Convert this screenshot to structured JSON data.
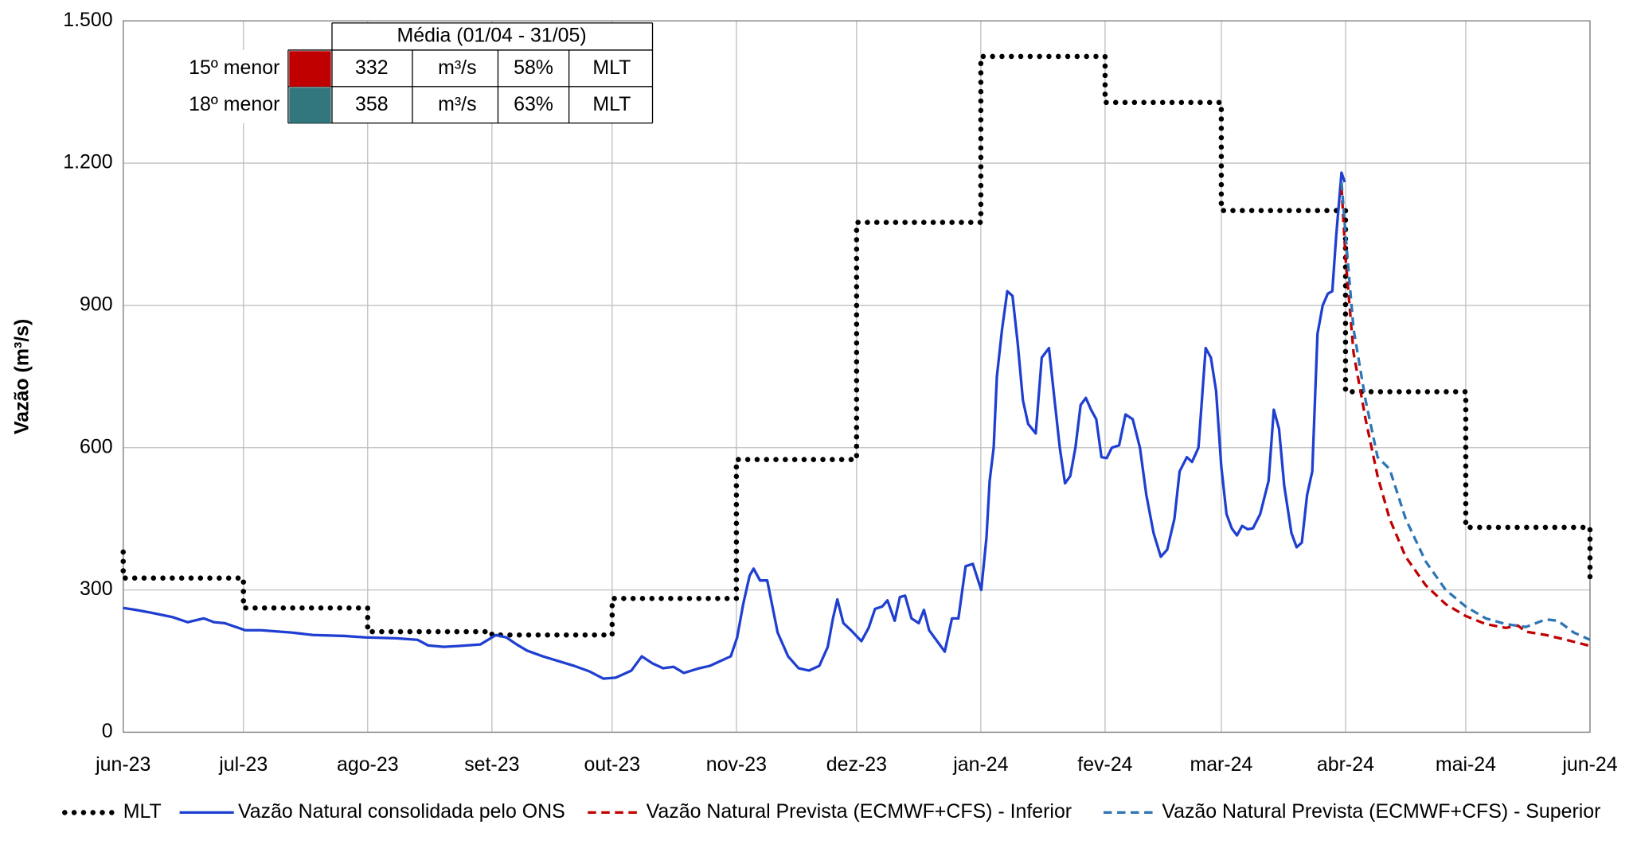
{
  "chart_data": {
    "type": "line",
    "y_label": "Vazão (m³/s)",
    "xlim": [
      0,
      366
    ],
    "xticks": [
      {
        "value": 0,
        "label": "jun-23"
      },
      {
        "value": 30,
        "label": "jul-23"
      },
      {
        "value": 61,
        "label": "ago-23"
      },
      {
        "value": 92,
        "label": "set-23"
      },
      {
        "value": 122,
        "label": "out-23"
      },
      {
        "value": 153,
        "label": "nov-23"
      },
      {
        "value": 183,
        "label": "dez-23"
      },
      {
        "value": 214,
        "label": "jan-24"
      },
      {
        "value": 245,
        "label": "fev-24"
      },
      {
        "value": 274,
        "label": "mar-24"
      },
      {
        "value": 305,
        "label": "abr-24"
      },
      {
        "value": 335,
        "label": "mai-24"
      },
      {
        "value": 366,
        "label": "jun-24"
      }
    ],
    "ylim": [
      0,
      1500
    ],
    "yticks": [
      0,
      300,
      600,
      900,
      {
        "value": 1200,
        "label": "1.200"
      },
      {
        "value": 1500,
        "label": "1.500"
      }
    ],
    "grid": true,
    "legend": "bottom",
    "series": [
      {
        "name": "MLT",
        "color": "#000000",
        "style": "dotted",
        "x": [
          0,
          0,
          30,
          30,
          61,
          61,
          92,
          92,
          122,
          122,
          153,
          153,
          183,
          183,
          214,
          214,
          245,
          245,
          274,
          274,
          305,
          305,
          335,
          335,
          366,
          366
        ],
        "values": [
          380,
          325,
          325,
          262,
          262,
          212,
          212,
          205,
          205,
          282,
          282,
          575,
          575,
          1075,
          1075,
          1425,
          1425,
          1328,
          1328,
          1100,
          1100,
          718,
          718,
          432,
          432,
          325
        ]
      },
      {
        "name": "Vazão Natural consolidada pelo ONS",
        "color": "#1f3fd0",
        "style": "solid",
        "x": [
          0,
          3.1,
          7.0,
          12.2,
          16.1,
          20.1,
          22.7,
          25.3,
          30.5,
          34.4,
          42.2,
          47.4,
          55.2,
          60.4,
          68.2,
          73.4,
          76.1,
          80.0,
          83.9,
          89.1,
          93.0,
          95.6,
          98.2,
          100.8,
          104.7,
          108.6,
          112.5,
          116.4,
          119.8,
          122.9,
          126.8,
          129.4,
          132.1,
          134.7,
          137.3,
          139.9,
          143.8,
          146.4,
          149.0,
          151.6,
          153.2,
          154.7,
          156.3,
          157.3,
          158.9,
          160.7,
          163.3,
          165.9,
          168.5,
          171.1,
          173.7,
          175.8,
          177.1,
          178.2,
          179.7,
          181.6,
          184.2,
          186.0,
          187.6,
          189.4,
          190.7,
          192.5,
          193.8,
          195.1,
          196.7,
          198.5,
          199.8,
          201.1,
          202.4,
          205.0,
          206.8,
          208.4,
          210.2,
          212.0,
          214.1,
          215.4,
          216.2,
          217.2,
          218.0,
          219.3,
          220.6,
          221.9,
          223.2,
          224.5,
          225.8,
          227.7,
          229.2,
          231.0,
          232.4,
          233.7,
          235.0,
          236.3,
          237.6,
          238.9,
          240.2,
          241.5,
          242.8,
          244.1,
          245.4,
          246.7,
          248.5,
          250.1,
          251.9,
          253.7,
          255.3,
          257.1,
          258.9,
          260.5,
          262.3,
          263.6,
          265.4,
          266.7,
          268.3,
          270.1,
          271.4,
          272.7,
          274.0,
          275.3,
          276.6,
          277.9,
          279.2,
          280.6,
          281.9,
          283.7,
          285.8,
          287.1,
          288.4,
          289.7,
          291.5,
          292.8,
          294.1,
          295.4,
          296.7,
          298.0,
          299.3,
          300.6,
          301.7,
          302.7,
          304.0,
          304.8
        ],
        "values": [
          262,
          258,
          252,
          243,
          232,
          240,
          232,
          230,
          215,
          215,
          210,
          205,
          203,
          200,
          198,
          195,
          183,
          180,
          182,
          185,
          205,
          200,
          185,
          172,
          160,
          150,
          140,
          128,
          113,
          115,
          130,
          160,
          145,
          135,
          138,
          125,
          135,
          140,
          150,
          160,
          200,
          270,
          330,
          345,
          320,
          320,
          210,
          160,
          135,
          130,
          140,
          180,
          240,
          280,
          230,
          215,
          192,
          220,
          260,
          265,
          278,
          235,
          285,
          288,
          240,
          230,
          258,
          215,
          200,
          170,
          240,
          240,
          350,
          355,
          300,
          410,
          530,
          600,
          750,
          850,
          930,
          920,
          820,
          700,
          650,
          630,
          790,
          810,
          700,
          600,
          525,
          540,
          600,
          690,
          705,
          680,
          660,
          580,
          578,
          600,
          605,
          670,
          660,
          600,
          500,
          420,
          370,
          385,
          450,
          550,
          580,
          570,
          600,
          810,
          790,
          720,
          560,
          460,
          430,
          415,
          435,
          428,
          430,
          460,
          530,
          680,
          640,
          520,
          420,
          390,
          400,
          500,
          550,
          840,
          900,
          925,
          930,
          1050,
          1180,
          1160
        ]
      },
      {
        "name": "Vazão Natural Prevista (ECMWF+CFS) - Inferior",
        "color": "#c00000",
        "style": "dashed",
        "x": [
          304,
          305,
          307,
          310,
          313,
          316,
          320,
          325,
          330,
          335,
          340,
          345,
          348,
          350,
          355,
          360,
          366
        ],
        "values": [
          1150,
          1000,
          800,
          660,
          540,
          450,
          370,
          310,
          270,
          245,
          228,
          220,
          225,
          212,
          205,
          195,
          182
        ]
      },
      {
        "name": "Vazão Natural Prevista (ECMWF+CFS) - Superior",
        "color": "#2e75b6",
        "style": "dashed",
        "x": [
          304,
          305,
          307,
          310,
          313,
          316,
          320,
          325,
          330,
          335,
          340,
          345,
          350,
          355,
          358,
          362,
          366
        ],
        "values": [
          1160,
          1050,
          850,
          700,
          580,
          555,
          450,
          360,
          300,
          265,
          240,
          228,
          222,
          238,
          235,
          210,
          195
        ]
      }
    ],
    "table": {
      "header": "Média (01/04 - 31/05)",
      "rows": [
        {
          "label": "15º menor",
          "color": "#c00000",
          "value": "332",
          "unit": "m³/s",
          "percent": "58%",
          "ref": "MLT"
        },
        {
          "label": "18º menor",
          "color": "#31777d",
          "value": "358",
          "unit": "m³/s",
          "percent": "63%",
          "ref": "MLT"
        }
      ]
    }
  }
}
